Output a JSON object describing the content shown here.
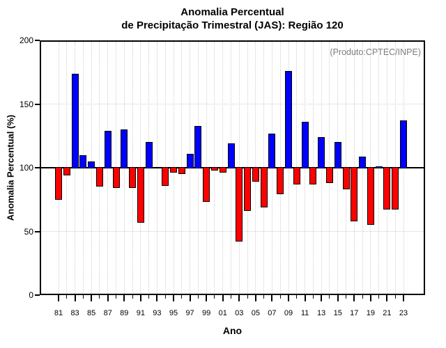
{
  "title": {
    "line1": "Anomalia Percentual",
    "line2": "de Precipitação Trimestral (JAS): Região 120"
  },
  "annotation": "(Produto:CPTEC/INPE)",
  "axes": {
    "xlabel": "Ano",
    "ylabel": "Anomalia Percentual (%)"
  },
  "chart_data": {
    "type": "bar",
    "title": "Anomalia Percentual de Precipitação Trimestral (JAS): Região 120",
    "xlabel": "Ano",
    "ylabel": "Anomalia Percentual (%)",
    "ylim": [
      0,
      200
    ],
    "yticks": [
      0,
      50,
      100,
      150,
      200
    ],
    "baseline": 100,
    "legend": "none",
    "grid": "dotted light-gray: vertical line at every year, horizontal lines at 50 and 150; solid black line at 100",
    "annotation": "(Produto:CPTEC/INPE)",
    "bar_colors": {
      "above_baseline": "#0000ff",
      "below_baseline": "#ff0000",
      "border": "#000000"
    },
    "categories": [
      "81",
      "82",
      "83",
      "84",
      "85",
      "86",
      "87",
      "88",
      "89",
      "90",
      "91",
      "92",
      "93",
      "94",
      "95",
      "96",
      "97",
      "98",
      "99",
      "00",
      "01",
      "02",
      "03",
      "04",
      "05",
      "06",
      "07",
      "08",
      "09",
      "10",
      "11",
      "12",
      "13",
      "14",
      "15",
      "16",
      "17",
      "18",
      "19",
      "20",
      "21",
      "22",
      "23"
    ],
    "values": [
      75,
      94,
      174,
      110,
      105,
      85,
      129,
      84,
      130,
      84,
      57,
      120,
      100,
      86,
      96,
      95,
      111,
      133,
      73,
      98,
      96,
      119,
      42,
      66,
      89,
      69,
      127,
      79,
      176,
      87,
      136,
      87,
      124,
      88,
      120,
      83,
      58,
      109,
      55,
      101,
      67,
      67,
      137
    ],
    "x_tick_labeled_years": [
      "81",
      "83",
      "85",
      "87",
      "89",
      "91",
      "93",
      "95",
      "97",
      "99",
      "01",
      "03",
      "05",
      "07",
      "09",
      "11",
      "13",
      "15",
      "17",
      "19",
      "21",
      "23"
    ]
  }
}
